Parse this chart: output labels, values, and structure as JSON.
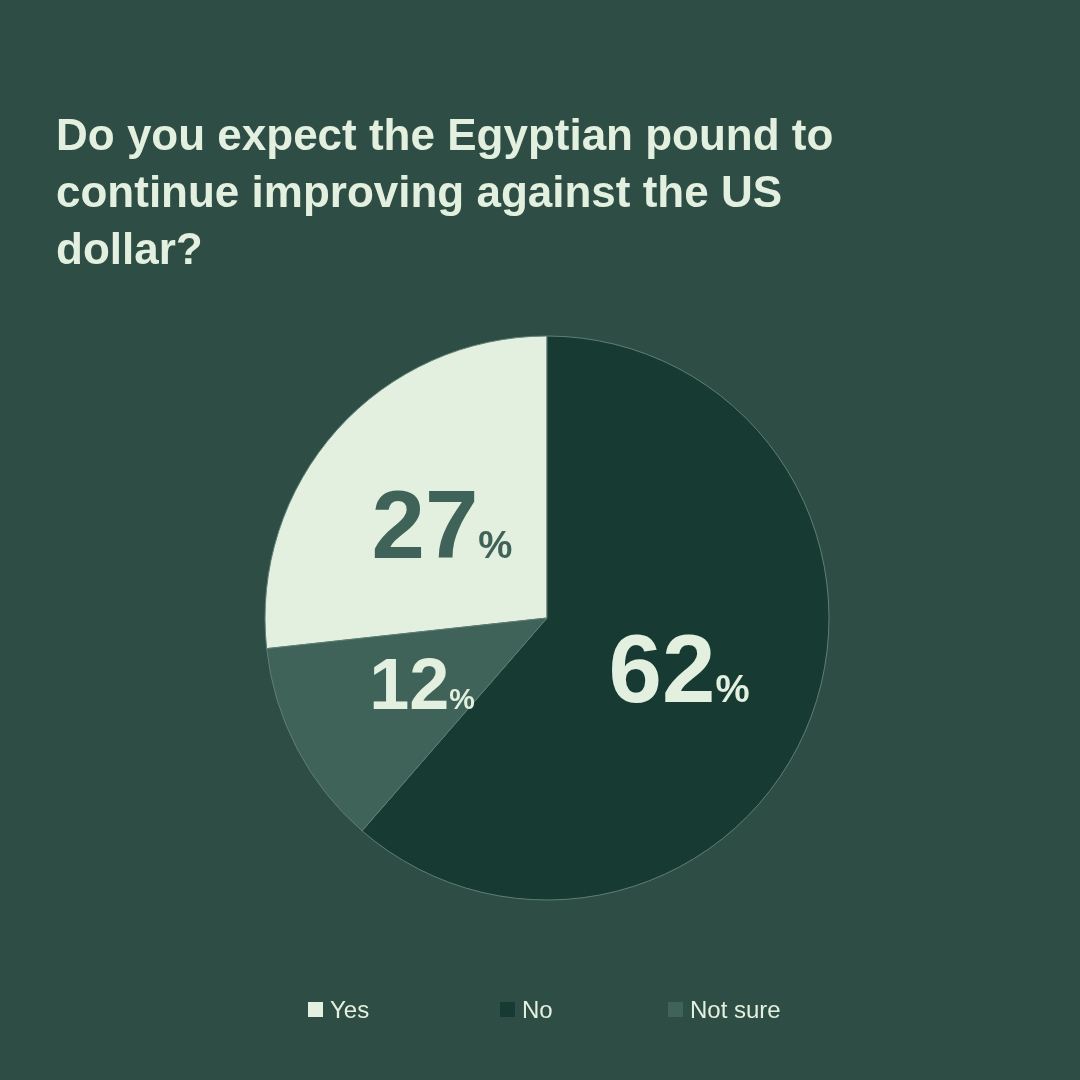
{
  "chart_data": {
    "type": "pie",
    "title": "Do you expect the Egyptian pound to continue improving against the US dollar?",
    "categories": [
      "Yes",
      "No",
      "Not sure"
    ],
    "values": [
      27,
      62,
      12
    ],
    "colors": [
      "#e3f0df",
      "#173b33",
      "#3f6259"
    ],
    "value_labels": [
      "27%",
      "62%",
      "12%"
    ],
    "legend": "bottom"
  }
}
